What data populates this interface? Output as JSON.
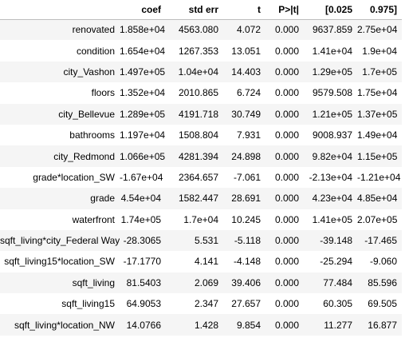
{
  "columns": [
    "",
    "coef",
    "std err",
    "t",
    "P>|t|",
    "[0.025",
    "0.975]"
  ],
  "rows": [
    {
      "name": "renovated",
      "coef": "1.858e+04",
      "std_err": "4563.080",
      "t": "4.072",
      "p": "0.000",
      "lo": "9637.859",
      "hi": "2.75e+04"
    },
    {
      "name": "condition",
      "coef": "1.654e+04",
      "std_err": "1267.353",
      "t": "13.051",
      "p": "0.000",
      "lo": "1.41e+04",
      "hi": "1.9e+04"
    },
    {
      "name": "city_Vashon",
      "coef": "1.497e+05",
      "std_err": "1.04e+04",
      "t": "14.403",
      "p": "0.000",
      "lo": "1.29e+05",
      "hi": "1.7e+05"
    },
    {
      "name": "floors",
      "coef": "1.352e+04",
      "std_err": "2010.865",
      "t": "6.724",
      "p": "0.000",
      "lo": "9579.508",
      "hi": "1.75e+04"
    },
    {
      "name": "city_Bellevue",
      "coef": "1.289e+05",
      "std_err": "4191.718",
      "t": "30.749",
      "p": "0.000",
      "lo": "1.21e+05",
      "hi": "1.37e+05"
    },
    {
      "name": "bathrooms",
      "coef": "1.197e+04",
      "std_err": "1508.804",
      "t": "7.931",
      "p": "0.000",
      "lo": "9008.937",
      "hi": "1.49e+04"
    },
    {
      "name": "city_Redmond",
      "coef": "1.066e+05",
      "std_err": "4281.394",
      "t": "24.898",
      "p": "0.000",
      "lo": "9.82e+04",
      "hi": "1.15e+05"
    },
    {
      "name": "grade*location_SW",
      "coef": "-1.67e+04",
      "std_err": "2364.657",
      "t": "-7.061",
      "p": "0.000",
      "lo": "-2.13e+04",
      "hi": "-1.21e+04"
    },
    {
      "name": "grade",
      "coef": "4.54e+04",
      "std_err": "1582.447",
      "t": "28.691",
      "p": "0.000",
      "lo": "4.23e+04",
      "hi": "4.85e+04"
    },
    {
      "name": "waterfront",
      "coef": "1.74e+05",
      "std_err": "1.7e+04",
      "t": "10.245",
      "p": "0.000",
      "lo": "1.41e+05",
      "hi": "2.07e+05"
    },
    {
      "name": "sqft_living*city_Federal Way",
      "coef": "-28.3065",
      "std_err": "5.531",
      "t": "-5.118",
      "p": "0.000",
      "lo": "-39.148",
      "hi": "-17.465"
    },
    {
      "name": "sqft_living15*location_SW",
      "coef": "-17.1770",
      "std_err": "4.141",
      "t": "-4.148",
      "p": "0.000",
      "lo": "-25.294",
      "hi": "-9.060"
    },
    {
      "name": "sqft_living",
      "coef": "81.5403",
      "std_err": "2.069",
      "t": "39.406",
      "p": "0.000",
      "lo": "77.484",
      "hi": "85.596"
    },
    {
      "name": "sqft_living15",
      "coef": "64.9053",
      "std_err": "2.347",
      "t": "27.657",
      "p": "0.000",
      "lo": "60.305",
      "hi": "69.505"
    },
    {
      "name": "sqft_living*location_NW",
      "coef": "14.0766",
      "std_err": "1.428",
      "t": "9.854",
      "p": "0.000",
      "lo": "11.277",
      "hi": "16.877"
    }
  ]
}
